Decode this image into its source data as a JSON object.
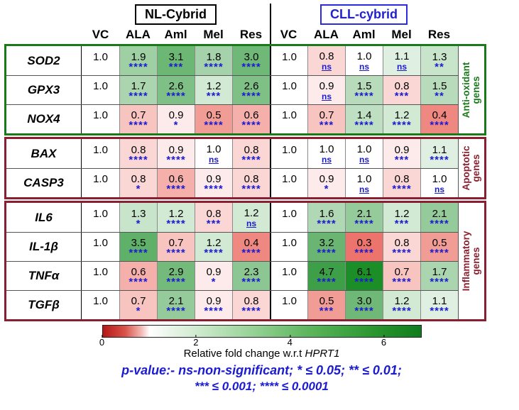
{
  "chart_data": {
    "type": "heatmap",
    "column_group_labels": [
      "NL-Cybrid",
      "CLL-cybrid"
    ],
    "columns": [
      "VC",
      "ALA",
      "Aml",
      "Mel",
      "Res",
      "VC",
      "ALA",
      "Aml",
      "Mel",
      "Res"
    ],
    "value_anchor_white": 1.0,
    "gene_groups": [
      {
        "label": "Anti-oxidant\ngenes",
        "color": "#1a7a1a",
        "rows": [
          {
            "gene": "SOD2",
            "cells": [
              {
                "v": "1.0",
                "s": ""
              },
              {
                "v": "1.9",
                "s": "****"
              },
              {
                "v": "3.1",
                "s": "***"
              },
              {
                "v": "1.8",
                "s": "****"
              },
              {
                "v": "3.0",
                "s": "****"
              },
              {
                "v": "1.0",
                "s": ""
              },
              {
                "v": "0.8",
                "s": "ns"
              },
              {
                "v": "1.0",
                "s": "ns"
              },
              {
                "v": "1.1",
                "s": "ns"
              },
              {
                "v": "1.3",
                "s": "**"
              }
            ]
          },
          {
            "gene": "GPX3",
            "cells": [
              {
                "v": "1.0",
                "s": ""
              },
              {
                "v": "1.7",
                "s": "****"
              },
              {
                "v": "2.6",
                "s": "****"
              },
              {
                "v": "1.2",
                "s": "***"
              },
              {
                "v": "2.6",
                "s": "****"
              },
              {
                "v": "1.0",
                "s": ""
              },
              {
                "v": "0.9",
                "s": "ns"
              },
              {
                "v": "1.5",
                "s": "****"
              },
              {
                "v": "0.8",
                "s": "***"
              },
              {
                "v": "1.5",
                "s": "**"
              }
            ]
          },
          {
            "gene": "NOX4",
            "cells": [
              {
                "v": "1.0",
                "s": ""
              },
              {
                "v": "0.7",
                "s": "****"
              },
              {
                "v": "0.9",
                "s": "*"
              },
              {
                "v": "0.5",
                "s": "****"
              },
              {
                "v": "0.6",
                "s": "****"
              },
              {
                "v": "1.0",
                "s": ""
              },
              {
                "v": "0.7",
                "s": "***"
              },
              {
                "v": "1.4",
                "s": "****"
              },
              {
                "v": "1.2",
                "s": "****"
              },
              {
                "v": "0.4",
                "s": "****"
              }
            ]
          }
        ]
      },
      {
        "label": "Apoptotic\ngenes",
        "color": "#8c1f2f",
        "rows": [
          {
            "gene": "BAX",
            "cells": [
              {
                "v": "1.0",
                "s": ""
              },
              {
                "v": "0.8",
                "s": "****"
              },
              {
                "v": "0.9",
                "s": "****"
              },
              {
                "v": "1.0",
                "s": "ns"
              },
              {
                "v": "0.8",
                "s": "****"
              },
              {
                "v": "1.0",
                "s": ""
              },
              {
                "v": "1.0",
                "s": "ns"
              },
              {
                "v": "1.0",
                "s": "ns"
              },
              {
                "v": "0.9",
                "s": "***"
              },
              {
                "v": "1.1",
                "s": "****"
              }
            ]
          },
          {
            "gene": "CASP3",
            "cells": [
              {
                "v": "1.0",
                "s": ""
              },
              {
                "v": "0.8",
                "s": "*"
              },
              {
                "v": "0.6",
                "s": "****"
              },
              {
                "v": "0.9",
                "s": "****"
              },
              {
                "v": "0.8",
                "s": "****"
              },
              {
                "v": "1.0",
                "s": ""
              },
              {
                "v": "0.9",
                "s": "*"
              },
              {
                "v": "1.0",
                "s": "ns"
              },
              {
                "v": "0.8",
                "s": "****"
              },
              {
                "v": "1.0",
                "s": "ns"
              }
            ]
          }
        ]
      },
      {
        "label": "Inflammatory\ngenes",
        "color": "#8c1f2f",
        "rows": [
          {
            "gene": "IL6",
            "cells": [
              {
                "v": "1.0",
                "s": ""
              },
              {
                "v": "1.3",
                "s": "*"
              },
              {
                "v": "1.2",
                "s": "****"
              },
              {
                "v": "0.8",
                "s": "***"
              },
              {
                "v": "1.2",
                "s": "ns"
              },
              {
                "v": "1.0",
                "s": ""
              },
              {
                "v": "1.6",
                "s": "****"
              },
              {
                "v": "2.1",
                "s": "****"
              },
              {
                "v": "1.2",
                "s": "***"
              },
              {
                "v": "2.1",
                "s": "****"
              }
            ]
          },
          {
            "gene": "IL-1β",
            "cells": [
              {
                "v": "1.0",
                "s": ""
              },
              {
                "v": "3.5",
                "s": "****"
              },
              {
                "v": "0.7",
                "s": "****"
              },
              {
                "v": "1.2",
                "s": "****"
              },
              {
                "v": "0.4",
                "s": "****"
              },
              {
                "v": "1.0",
                "s": ""
              },
              {
                "v": "3.2",
                "s": "****"
              },
              {
                "v": "0.3",
                "s": "****"
              },
              {
                "v": "0.8",
                "s": "****"
              },
              {
                "v": "0.5",
                "s": "****"
              }
            ]
          },
          {
            "gene": "TNFα",
            "cells": [
              {
                "v": "1.0",
                "s": ""
              },
              {
                "v": "0.6",
                "s": "****"
              },
              {
                "v": "2.9",
                "s": "****"
              },
              {
                "v": "0.9",
                "s": "*"
              },
              {
                "v": "2.3",
                "s": "****"
              },
              {
                "v": "1.0",
                "s": ""
              },
              {
                "v": "4.7",
                "s": "****"
              },
              {
                "v": "6.1",
                "s": "****"
              },
              {
                "v": "0.7",
                "s": "****"
              },
              {
                "v": "1.7",
                "s": "****"
              }
            ]
          },
          {
            "gene": "TGFβ",
            "cells": [
              {
                "v": "1.0",
                "s": ""
              },
              {
                "v": "0.7",
                "s": "*"
              },
              {
                "v": "2.1",
                "s": "****"
              },
              {
                "v": "0.9",
                "s": "****"
              },
              {
                "v": "0.8",
                "s": "****"
              },
              {
                "v": "1.0",
                "s": ""
              },
              {
                "v": "0.5",
                "s": "***"
              },
              {
                "v": "3.0",
                "s": "****"
              },
              {
                "v": "1.2",
                "s": "****"
              },
              {
                "v": "1.1",
                "s": "****"
              }
            ]
          }
        ]
      }
    ],
    "colorbar": {
      "min": 0,
      "max": 6.8,
      "ticks": [
        "0",
        "2",
        "4",
        "6"
      ],
      "tick_values": [
        0,
        2,
        4,
        6
      ],
      "label_prefix": "Relative fold change w.r.t ",
      "label_gene": "HPRT1",
      "low_color": "#b51717",
      "high_color": "#0f7d1d"
    }
  },
  "footnote": {
    "prefix": "p-value:- ",
    "line1": "ns-non-significant; * ≤ 0.05; ** ≤ 0.01;",
    "line2": "*** ≤ 0.001; **** ≤ 0.0001",
    "color": "#1b1bd0"
  }
}
